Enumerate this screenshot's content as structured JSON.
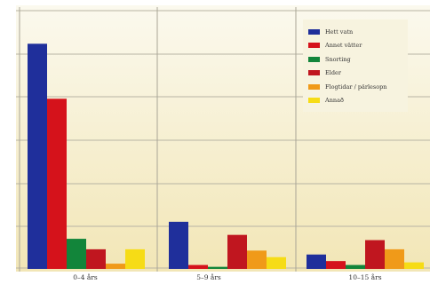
{
  "chart_data": {
    "type": "bar",
    "title": "",
    "xlabel": "",
    "ylabel": "",
    "categories": [
      "0–4 års",
      "5–9 års",
      "10–15 års"
    ],
    "ylim": [
      0,
      100
    ],
    "grid": true,
    "legend_position": "top-right",
    "series": [
      {
        "name": "Hett vatn",
        "color": "#1f2f9b",
        "values": [
          86,
          18,
          5.5
        ]
      },
      {
        "name": "Annet vätter",
        "color": "#d5121b",
        "values": [
          65,
          1.5,
          3
        ]
      },
      {
        "name": "Snorting",
        "color": "#12853a",
        "values": [
          11.5,
          0.8,
          1.5
        ]
      },
      {
        "name": "Elder",
        "color": "#c0161f",
        "values": [
          7.5,
          13,
          11
        ]
      },
      {
        "name": "Flogtidar / pärlesopn",
        "color": "#f09a19",
        "values": [
          2,
          7,
          7.5
        ]
      },
      {
        "name": "Annað",
        "color": "#f6dc16",
        "values": [
          7.5,
          4.5,
          2.5
        ]
      }
    ]
  }
}
